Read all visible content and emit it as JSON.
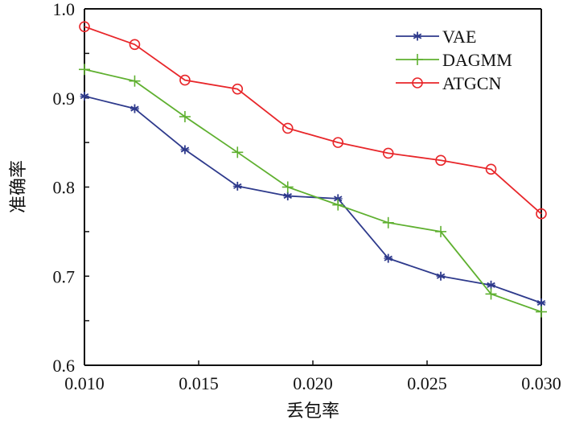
{
  "chart_data": {
    "type": "line",
    "title": "",
    "xlabel": "丢包率",
    "ylabel": "准确率",
    "xlim": [
      0.01,
      0.03
    ],
    "ylim": [
      0.6,
      1.0
    ],
    "xticks": [
      0.01,
      0.015,
      0.02,
      0.025,
      0.03
    ],
    "xtick_labels": [
      "0.010",
      "0.015",
      "0.020",
      "0.025",
      "0.030"
    ],
    "yticks": [
      0.6,
      0.7,
      0.8,
      0.9,
      1.0
    ],
    "ytick_labels": [
      "0.6",
      "0.7",
      "0.8",
      "0.9",
      "1.0"
    ],
    "y_minor_ticks": [
      0.65,
      0.75,
      0.85,
      0.95
    ],
    "grid": false,
    "legend_position": "top-right",
    "x": [
      0.01,
      0.0122,
      0.0144,
      0.0167,
      0.0189,
      0.0211,
      0.0233,
      0.0256,
      0.0278,
      0.03
    ],
    "series": [
      {
        "name": "VAE",
        "color": "#2e3a8c",
        "marker": "asterisk",
        "values": [
          0.902,
          0.888,
          0.842,
          0.801,
          0.79,
          0.787,
          0.72,
          0.7,
          0.69,
          0.67
        ]
      },
      {
        "name": "DAGMM",
        "color": "#5fb030",
        "marker": "plus",
        "values": [
          0.932,
          0.919,
          0.879,
          0.839,
          0.8,
          0.78,
          0.76,
          0.75,
          0.68,
          0.66
        ]
      },
      {
        "name": "ATGCN",
        "color": "#e8262a",
        "marker": "circle",
        "values": [
          0.98,
          0.96,
          0.92,
          0.91,
          0.866,
          0.85,
          0.838,
          0.83,
          0.82,
          0.77
        ]
      }
    ]
  }
}
